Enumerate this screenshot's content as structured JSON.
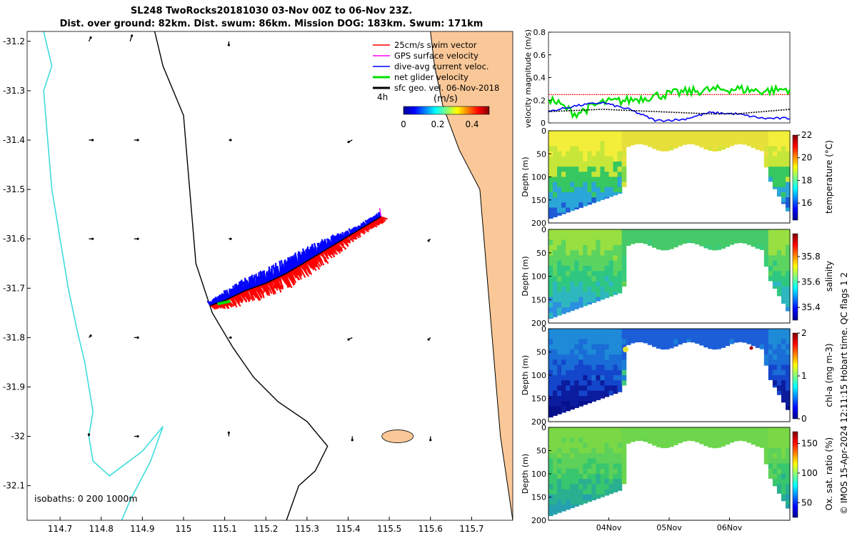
{
  "title": {
    "line1": "SL248 TwoRocks20181030 03-Nov 00Z to 06-Nov 23Z.",
    "line2": "Dist. over ground: 82km. Dist. swum: 86km. Mission DOG: 183km. Swum: 171km"
  },
  "credit": "© IMOS 15-Apr-2024 12:11:15 Hobart time. QC flags 1  2",
  "colors": {
    "land": "#fac898",
    "isobath0": "#000000",
    "isobath1000": "#3fdcdc",
    "swim": "#ff0000",
    "gps": "#ff00ff",
    "diveavg": "#0000ff",
    "net": "#00e000",
    "sfcgeo": "#000000"
  },
  "chart_data": [
    {
      "type": "map",
      "xlim": [
        114.62,
        115.8
      ],
      "ylim": [
        -32.17,
        -31.18
      ],
      "xticks": [
        114.7,
        114.8,
        114.9,
        115,
        115.1,
        115.2,
        115.3,
        115.4,
        115.5,
        115.6,
        115.7
      ],
      "xtick_labels": [
        "114.7",
        "114.8",
        "114.9",
        "115",
        "115.1",
        "115.2",
        "115.3",
        "115.4",
        "115.5",
        "115.6",
        "115.7"
      ],
      "yticks": [
        -31.2,
        -31.3,
        -31.4,
        -31.5,
        -31.6,
        -31.7,
        -31.8,
        -31.9,
        -32,
        -32.1
      ],
      "ytick_labels": [
        "-31.2",
        "-31.3",
        "-31.4",
        "-31.5",
        "-31.6",
        "-31.7",
        "-31.8",
        "-31.9",
        "-32",
        "-32.1"
      ],
      "legend": {
        "position": "top-right",
        "items": [
          {
            "label": "25cm/s swim vector",
            "color": "#ff0000"
          },
          {
            "label": "GPS surface velocity",
            "color": "#ff00ff"
          },
          {
            "label": "dive-avg current veloc.",
            "color": "#0000ff"
          },
          {
            "label": "net glider velocity",
            "color": "#00e000"
          },
          {
            "label": "sfc geo. vel. 06-Nov-2018",
            "color": "#000000"
          }
        ],
        "time_label": "4h"
      },
      "colorbar": {
        "label": "(m/s)",
        "ticks": [
          "0",
          "0.2",
          "0.4"
        ],
        "range": [
          0,
          0.5
        ]
      },
      "isobath_label": "isobaths: 0   200  1000m",
      "track": {
        "start": [
          115.065,
          -31.735
        ],
        "end": [
          115.48,
          -31.555
        ],
        "points": [
          [
            115.065,
            -31.735
          ],
          [
            115.1,
            -31.725
          ],
          [
            115.15,
            -31.705
          ],
          [
            115.2,
            -31.69
          ],
          [
            115.25,
            -31.67
          ],
          [
            115.3,
            -31.645
          ],
          [
            115.35,
            -31.62
          ],
          [
            115.4,
            -31.595
          ],
          [
            115.45,
            -31.57
          ],
          [
            115.48,
            -31.555
          ]
        ]
      },
      "coast": [
        [
          115.6,
          -31.18
        ],
        [
          115.61,
          -31.25
        ],
        [
          115.63,
          -31.33
        ],
        [
          115.67,
          -31.42
        ],
        [
          115.72,
          -31.5
        ],
        [
          115.73,
          -31.6
        ],
        [
          115.74,
          -31.7
        ],
        [
          115.75,
          -31.8
        ],
        [
          115.76,
          -31.9
        ],
        [
          115.77,
          -32.0
        ],
        [
          115.8,
          -32.17
        ]
      ],
      "isobath200": [
        [
          114.93,
          -31.18
        ],
        [
          114.95,
          -31.25
        ],
        [
          115.0,
          -31.35
        ],
        [
          115.01,
          -31.45
        ],
        [
          115.02,
          -31.55
        ],
        [
          115.03,
          -31.65
        ],
        [
          115.07,
          -31.75
        ],
        [
          115.12,
          -31.82
        ],
        [
          115.17,
          -31.88
        ],
        [
          115.23,
          -31.93
        ],
        [
          115.3,
          -31.97
        ],
        [
          115.35,
          -32.02
        ],
        [
          115.32,
          -32.07
        ],
        [
          115.28,
          -32.1
        ],
        [
          115.25,
          -32.17
        ]
      ],
      "isobath1000": [
        [
          114.66,
          -31.18
        ],
        [
          114.68,
          -31.25
        ],
        [
          114.66,
          -31.3
        ],
        [
          114.67,
          -31.4
        ],
        [
          114.68,
          -31.5
        ],
        [
          114.7,
          -31.6
        ],
        [
          114.72,
          -31.7
        ],
        [
          114.74,
          -31.78
        ],
        [
          114.76,
          -31.85
        ],
        [
          114.77,
          -31.9
        ],
        [
          114.78,
          -31.95
        ],
        [
          114.77,
          -32.0
        ],
        [
          114.78,
          -32.05
        ],
        [
          114.82,
          -32.08
        ],
        [
          114.9,
          -32.03
        ],
        [
          114.95,
          -31.98
        ],
        [
          114.92,
          -32.05
        ],
        [
          114.87,
          -32.13
        ],
        [
          114.85,
          -32.17
        ]
      ],
      "island": {
        "center": [
          115.52,
          -32.0
        ],
        "label": ""
      },
      "geo_vectors": [
        {
          "lon": 114.77,
          "lat": -31.2,
          "u": 0.01,
          "v": 0.02
        },
        {
          "lon": 114.87,
          "lat": -31.2,
          "u": 0.01,
          "v": 0.03
        },
        {
          "lon": 115.11,
          "lat": -31.2,
          "u": 0.0,
          "v": -0.02
        },
        {
          "lon": 114.77,
          "lat": -31.4,
          "u": 0.02,
          "v": 0.0
        },
        {
          "lon": 114.88,
          "lat": -31.4,
          "u": 0.02,
          "v": 0.0
        },
        {
          "lon": 115.11,
          "lat": -31.4,
          "u": 0.01,
          "v": 0.0
        },
        {
          "lon": 115.41,
          "lat": -31.4,
          "u": -0.02,
          "v": -0.01
        },
        {
          "lon": 114.77,
          "lat": -31.6,
          "u": 0.02,
          "v": 0.0
        },
        {
          "lon": 114.88,
          "lat": -31.6,
          "u": 0.02,
          "v": 0.0
        },
        {
          "lon": 115.11,
          "lat": -31.6,
          "u": 0.01,
          "v": 0.0
        },
        {
          "lon": 115.41,
          "lat": -31.6,
          "u": -0.02,
          "v": -0.01
        },
        {
          "lon": 115.6,
          "lat": -31.6,
          "u": -0.01,
          "v": -0.01
        },
        {
          "lon": 114.77,
          "lat": -31.8,
          "u": 0.01,
          "v": 0.01
        },
        {
          "lon": 114.88,
          "lat": -31.8,
          "u": 0.02,
          "v": 0.0
        },
        {
          "lon": 115.11,
          "lat": -31.8,
          "u": 0.01,
          "v": 0.0
        },
        {
          "lon": 115.41,
          "lat": -31.8,
          "u": -0.02,
          "v": -0.01
        },
        {
          "lon": 115.6,
          "lat": -31.8,
          "u": -0.01,
          "v": -0.01
        },
        {
          "lon": 114.77,
          "lat": -32.0,
          "u": 0.0,
          "v": 0.01
        },
        {
          "lon": 114.88,
          "lat": -32.0,
          "u": 0.02,
          "v": 0.0
        },
        {
          "lon": 115.11,
          "lat": -32.0,
          "u": 0.0,
          "v": 0.02
        },
        {
          "lon": 115.41,
          "lat": -32.0,
          "u": 0.0,
          "v": -0.02
        },
        {
          "lon": 115.6,
          "lat": -32.0,
          "u": 0.0,
          "v": -0.02
        }
      ]
    },
    {
      "type": "line",
      "ylabel": "velocity magnitude (m/s)",
      "ylim": [
        0,
        0.8
      ],
      "yticks": [
        0,
        0.2,
        0.4,
        0.6,
        0.8
      ],
      "xlim": [
        0,
        4
      ],
      "series": [
        {
          "name": "swim",
          "color": "#ff0000",
          "values": [
            0.25,
            0.25,
            0.25,
            0.25,
            0.25,
            0.25,
            0.25,
            0.25,
            0.25,
            0.25
          ]
        },
        {
          "name": "net glider velocity",
          "color": "#00e000",
          "values": [
            0.22,
            0.08,
            0.18,
            0.2,
            0.24,
            0.27,
            0.29,
            0.3,
            0.28,
            0.3
          ]
        },
        {
          "name": "dive-avg current veloc.",
          "color": "#0000ff",
          "values": [
            0.1,
            0.15,
            0.18,
            0.12,
            0.02,
            0.03,
            0.09,
            0.08,
            0.04,
            0.04
          ]
        },
        {
          "name": "sfc geo. vel.",
          "color": "#000000",
          "values": [
            0.1,
            0.11,
            0.12,
            0.11,
            0.1,
            0.09,
            0.08,
            0.08,
            0.1,
            0.12
          ]
        }
      ]
    },
    {
      "type": "heatmap",
      "variable": "temperature",
      "ylabel": "Depth (m)",
      "clabel": "temperature (°C)",
      "ylim": [
        200,
        0
      ],
      "yticks": [
        "0",
        "50",
        "100",
        "150",
        "200"
      ],
      "clim": [
        14.5,
        22
      ],
      "cticks": [
        "16",
        "18",
        "20",
        "22"
      ],
      "xticks": [
        "04Nov",
        "05Nov",
        "06Nov"
      ]
    },
    {
      "type": "heatmap",
      "variable": "salinity",
      "ylabel": "Depth (m)",
      "clabel": "salinity",
      "ylim": [
        200,
        0
      ],
      "yticks": [
        "0",
        "50",
        "100",
        "150",
        "200"
      ],
      "clim": [
        35.3,
        35.98
      ],
      "cticks": [
        "35.4",
        "35.6",
        "35.8"
      ],
      "xticks": [
        "04Nov",
        "05Nov",
        "06Nov"
      ]
    },
    {
      "type": "heatmap",
      "variable": "chl-a",
      "ylabel": "Depth (m)",
      "clabel": "chl-a (mg m-3)",
      "ylim": [
        200,
        0
      ],
      "yticks": [
        "0",
        "50",
        "100",
        "150",
        "200"
      ],
      "clim": [
        0,
        2
      ],
      "cticks": [
        "0",
        "1",
        "2"
      ],
      "xticks": [
        "04Nov",
        "05Nov",
        "06Nov"
      ]
    },
    {
      "type": "heatmap",
      "variable": "oxygen saturation",
      "ylabel": "Depth (m)",
      "clabel": "Ox. sat. ratio (%)",
      "ylim": [
        200,
        0
      ],
      "yticks": [
        "0",
        "50",
        "100",
        "150",
        "200"
      ],
      "clim": [
        25,
        170
      ],
      "cticks": [
        "50",
        "100",
        "150"
      ],
      "xticks": [
        "04Nov",
        "05Nov",
        "06Nov"
      ]
    }
  ]
}
